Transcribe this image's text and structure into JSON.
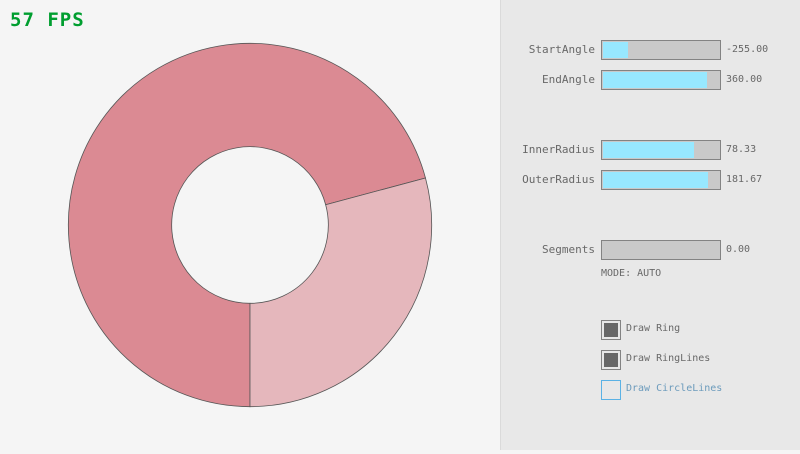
{
  "fps": "57 FPS",
  "ring": {
    "fill_color": "#db8a93",
    "overlap_light_color": "#e5b7bc",
    "outline_color": "#555555"
  },
  "controls": {
    "sliders": [
      {
        "label": "StartAngle",
        "value": "-255.00",
        "min": -450,
        "max": 450,
        "current": -255
      },
      {
        "label": "EndAngle",
        "value": "360.00",
        "min": -450,
        "max": 450,
        "current": 360
      },
      {
        "label": "InnerRadius",
        "value": "78.33",
        "min": 0,
        "max": 100,
        "current": 78.33
      },
      {
        "label": "OuterRadius",
        "value": "181.67",
        "min": 0,
        "max": 200,
        "current": 181.67
      },
      {
        "label": "Segments",
        "value": "0.00",
        "min": 0,
        "max": 100,
        "current": 0
      }
    ],
    "mode": "MODE: AUTO",
    "checkboxes": [
      {
        "label": "Draw Ring",
        "checked": true
      },
      {
        "label": "Draw RingLines",
        "checked": true
      },
      {
        "label": "Draw CircleLines",
        "checked": false
      }
    ]
  }
}
